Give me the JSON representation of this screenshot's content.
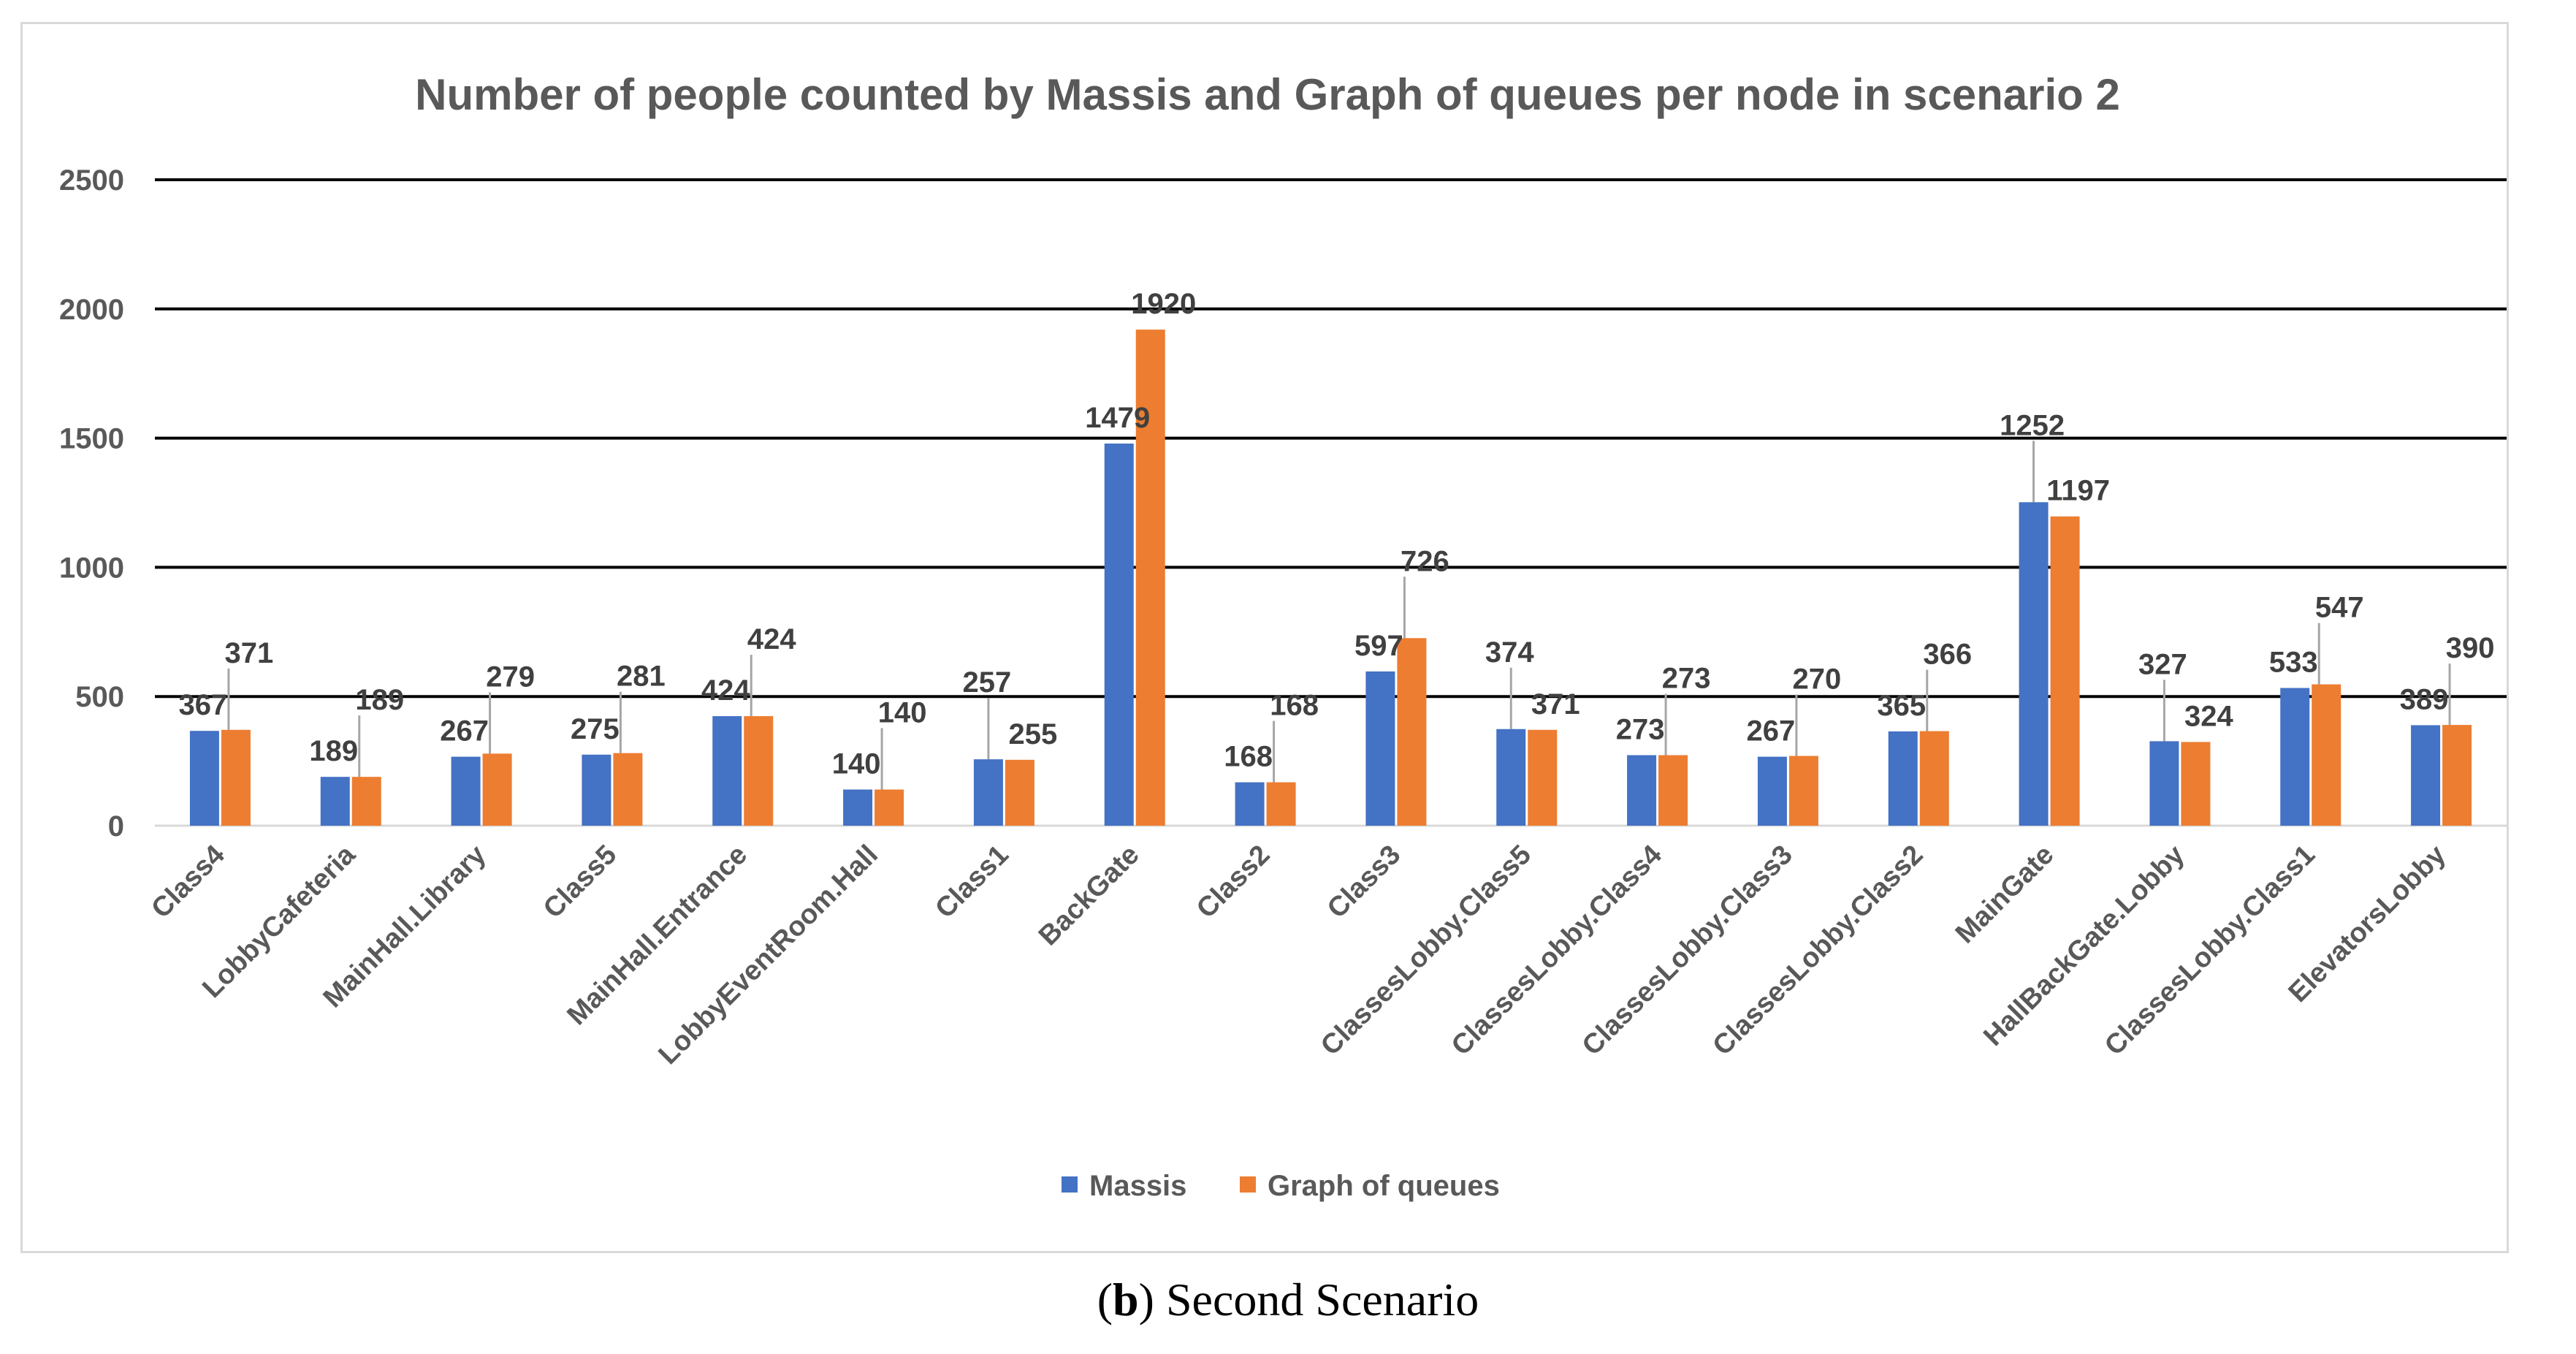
{
  "chart_data": {
    "type": "bar",
    "title": "Number of people counted by Massis and Graph of queues per node in scenario 2",
    "xlabel": "",
    "ylabel": "",
    "ylim": [
      0,
      2500
    ],
    "yticks": [
      0,
      500,
      1000,
      1500,
      2000,
      2500
    ],
    "grid": true,
    "legend_position": "bottom",
    "categories": [
      "Class4",
      "LobbyCafeteria",
      "MainHall.Library",
      "Class5",
      "MainHall.Entrance",
      "LobbyEventRoom.Hall",
      "Class1",
      "BackGate",
      "Class2",
      "Class3",
      "ClassesLobby.Class5",
      "ClassesLobby.Class4",
      "ClassesLobby.Class3",
      "ClassesLobby.Class2",
      "MainGate",
      "HallBackGate.Lobby",
      "ClassesLobby.Class1",
      "ElevatorsLobby"
    ],
    "series": [
      {
        "name": "Massis",
        "color": "#4472c4",
        "values": [
          367,
          189,
          267,
          275,
          424,
          140,
          257,
          1479,
          168,
          597,
          374,
          273,
          267,
          365,
          1252,
          327,
          533,
          389
        ]
      },
      {
        "name": "Graph of queues",
        "color": "#ed7d31",
        "values": [
          371,
          189,
          279,
          281,
          424,
          140,
          255,
          1920,
          168,
          726,
          371,
          273,
          270,
          366,
          1197,
          324,
          547,
          390
        ]
      }
    ]
  },
  "caption": {
    "label": "b",
    "text": "Second Scenario"
  }
}
